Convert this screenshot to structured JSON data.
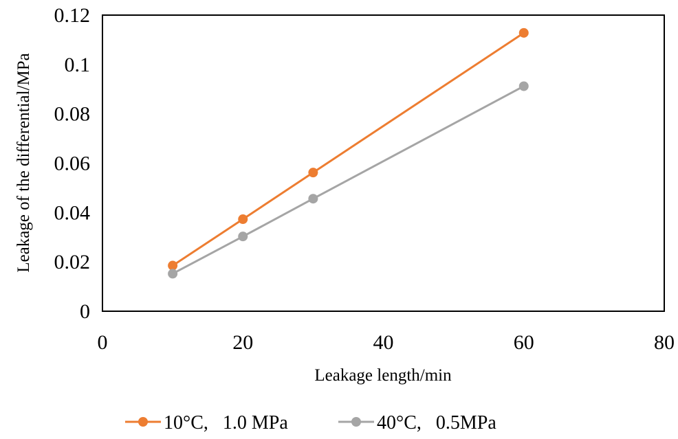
{
  "chart_data": {
    "type": "line",
    "title": "",
    "xlabel": "Leakage length/min",
    "ylabel": "Leakage of the differential/MPa",
    "xlim": [
      0,
      80
    ],
    "ylim": [
      0,
      0.12
    ],
    "xticks": [
      0,
      20,
      40,
      60,
      80
    ],
    "yticks": [
      0,
      0.02,
      0.04,
      0.06,
      0.08,
      0.1,
      0.12
    ],
    "xtick_labels": [
      "0",
      "20",
      "40",
      "60",
      "80"
    ],
    "ytick_labels": [
      "0",
      "0.02",
      "0.04",
      "0.06",
      "0.08",
      "0.1",
      "0.12"
    ],
    "grid": false,
    "legend_position": "bottom",
    "series": [
      {
        "name": "10°C,   1.0 MPa",
        "color": "#ed7d31",
        "x": [
          10,
          20,
          30,
          60
        ],
        "y": [
          0.0185,
          0.0373,
          0.0562,
          0.1128
        ]
      },
      {
        "name": "40°C,   0.5MPa",
        "color": "#a5a5a5",
        "x": [
          10,
          20,
          30,
          60
        ],
        "y": [
          0.0152,
          0.0303,
          0.0456,
          0.0912
        ]
      }
    ]
  }
}
